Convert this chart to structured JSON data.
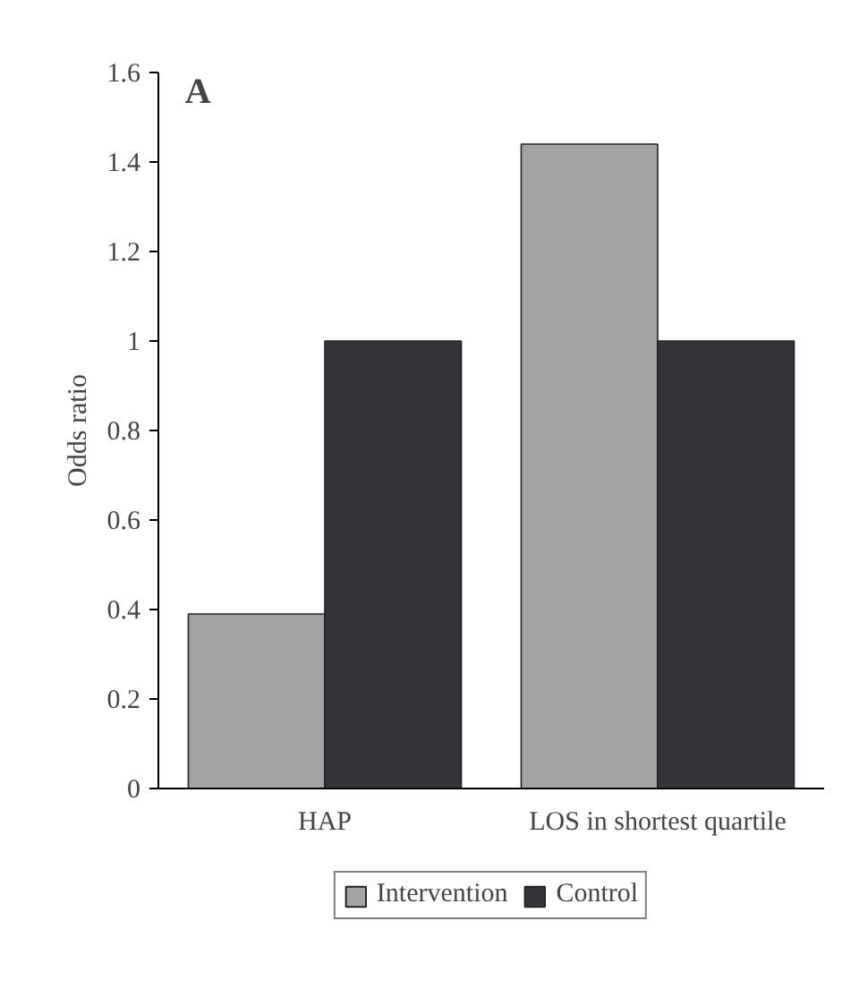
{
  "chart_data": {
    "type": "bar",
    "title": "A",
    "ylabel": "Odds ratio",
    "categories": [
      "HAP",
      "LOS in shortest quartile"
    ],
    "series": [
      {
        "name": "Intervention",
        "color": "#a3a3a3",
        "values": [
          0.39,
          1.44
        ]
      },
      {
        "name": "Control",
        "color": "#333538",
        "values": [
          1.0,
          1.0
        ]
      }
    ],
    "ylim": [
      0,
      1.6
    ],
    "yticks": [
      0,
      0.2,
      0.4,
      0.6,
      0.8,
      1,
      1.2,
      1.4,
      1.6
    ],
    "grid": false,
    "legend": "bottom"
  }
}
